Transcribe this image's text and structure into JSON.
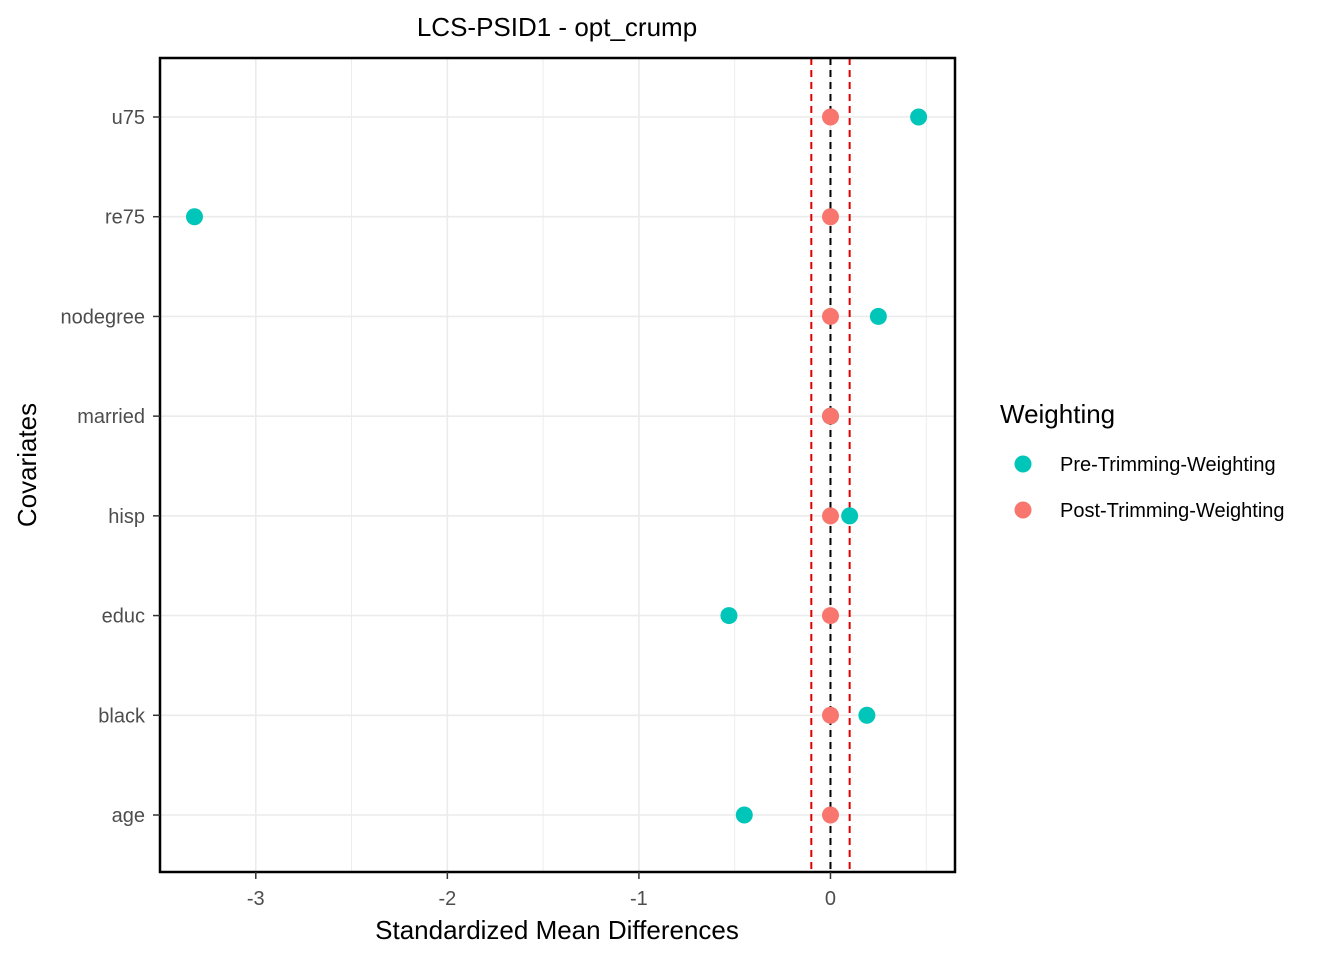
{
  "chart_data": {
    "type": "scatter",
    "title": "LCS-PSID1 - opt_crump",
    "xlabel": "Standardized Mean Differences",
    "ylabel": "Covariates",
    "xlim": [
      -3.5,
      0.65
    ],
    "x_ticks": [
      -3,
      -2,
      -1,
      0
    ],
    "x_tick_labels": [
      "-3",
      "-2",
      "-1",
      "0"
    ],
    "categories": [
      "age",
      "black",
      "educ",
      "hisp",
      "married",
      "nodegree",
      "re75",
      "u75"
    ],
    "series": [
      {
        "name": "Pre-Trimming-Weighting",
        "color": "#00C5B9",
        "values": [
          -0.45,
          0.19,
          -0.53,
          0.1,
          0.0,
          0.25,
          -3.32,
          0.46
        ]
      },
      {
        "name": "Post-Trimming-Weighting",
        "color": "#F8766D",
        "values": [
          0.0,
          0.0,
          0.0,
          0.0,
          0.0,
          0.0,
          0.0,
          0.0
        ]
      }
    ],
    "reference_lines": [
      {
        "x": 0,
        "color": "#000000",
        "style": "dashed"
      },
      {
        "x": -0.1,
        "color": "#E00000",
        "style": "dashed"
      },
      {
        "x": 0.1,
        "color": "#E00000",
        "style": "dashed"
      }
    ],
    "legend_title": "Weighting",
    "legend_position": "right",
    "grid": true
  }
}
